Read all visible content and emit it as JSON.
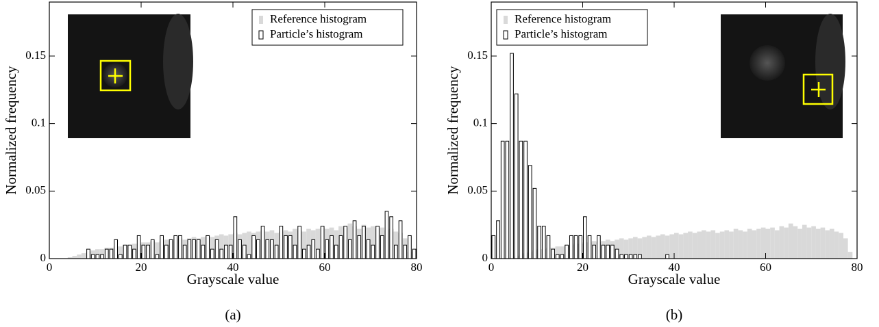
{
  "chart_data": [
    {
      "type": "histogram",
      "caption": "(a)",
      "x_label": "Grayscale value",
      "y_label": "Normalized frequency",
      "xlim": [
        0,
        80
      ],
      "xticks": [
        0,
        20,
        40,
        60,
        80
      ],
      "ylim": [
        0,
        0.19
      ],
      "yticks": [
        0,
        0.05,
        0.1,
        0.15
      ],
      "legend": "upper right",
      "bins": [
        0,
        1,
        2,
        3,
        4,
        5,
        6,
        7,
        8,
        9,
        10,
        11,
        12,
        13,
        14,
        15,
        16,
        17,
        18,
        19,
        20,
        21,
        22,
        23,
        24,
        25,
        26,
        27,
        28,
        29,
        30,
        31,
        32,
        33,
        34,
        35,
        36,
        37,
        38,
        39,
        40,
        41,
        42,
        43,
        44,
        45,
        46,
        47,
        48,
        49,
        50,
        51,
        52,
        53,
        54,
        55,
        56,
        57,
        58,
        59,
        60,
        61,
        62,
        63,
        64,
        65,
        66,
        67,
        68,
        69,
        70,
        71,
        72,
        73,
        74,
        75,
        76,
        77,
        78,
        79,
        80
      ],
      "series": [
        {
          "name": "Reference histogram",
          "color": "#d9d9d9",
          "values": [
            0,
            0,
            0,
            0,
            0.001,
            0.002,
            0.003,
            0.004,
            0.005,
            0.006,
            0.007,
            0.007,
            0.008,
            0.008,
            0.009,
            0.009,
            0.01,
            0.01,
            0.011,
            0.011,
            0.012,
            0.012,
            0.013,
            0.012,
            0.013,
            0.014,
            0.013,
            0.014,
            0.015,
            0.014,
            0.015,
            0.016,
            0.015,
            0.016,
            0.017,
            0.016,
            0.017,
            0.018,
            0.017,
            0.018,
            0.019,
            0.018,
            0.019,
            0.02,
            0.019,
            0.02,
            0.021,
            0.02,
            0.021,
            0.019,
            0.02,
            0.021,
            0.02,
            0.022,
            0.021,
            0.02,
            0.022,
            0.021,
            0.022,
            0.023,
            0.022,
            0.023,
            0.021,
            0.024,
            0.023,
            0.026,
            0.024,
            0.022,
            0.025,
            0.023,
            0.024,
            0.022,
            0.023,
            0.021,
            0.022,
            0.02,
            0.019,
            0.015,
            0.005,
            0
          ]
        },
        {
          "name": "Particle’s histogram",
          "color": "#ffffff",
          "values": [
            0,
            0,
            0,
            0,
            0,
            0,
            0,
            0,
            0.007,
            0.003,
            0.003,
            0.003,
            0.007,
            0.007,
            0.014,
            0.003,
            0.01,
            0.01,
            0.007,
            0.017,
            0.01,
            0.01,
            0.014,
            0.003,
            0.017,
            0.01,
            0.014,
            0.017,
            0.017,
            0.01,
            0.014,
            0.014,
            0.014,
            0.01,
            0.017,
            0.007,
            0.014,
            0.007,
            0.01,
            0.01,
            0.031,
            0.014,
            0.01,
            0.003,
            0.017,
            0.014,
            0.024,
            0.014,
            0.014,
            0.01,
            0.024,
            0.017,
            0.017,
            0.01,
            0.024,
            0.007,
            0.01,
            0.014,
            0.007,
            0.024,
            0.014,
            0.017,
            0.01,
            0.017,
            0.024,
            0.014,
            0.028,
            0.017,
            0.024,
            0.014,
            0.01,
            0.024,
            0.017,
            0.035,
            0.031,
            0.01,
            0.028,
            0.01,
            0.017,
            0.007
          ]
        }
      ]
    },
    {
      "type": "histogram",
      "caption": "(b)",
      "x_label": "Grayscale value",
      "y_label": "Normalized frequency",
      "xlim": [
        0,
        80
      ],
      "xticks": [
        0,
        20,
        40,
        60,
        80
      ],
      "ylim": [
        0,
        0.19
      ],
      "yticks": [
        0,
        0.05,
        0.1,
        0.15
      ],
      "legend": "upper left",
      "bins": [
        0,
        1,
        2,
        3,
        4,
        5,
        6,
        7,
        8,
        9,
        10,
        11,
        12,
        13,
        14,
        15,
        16,
        17,
        18,
        19,
        20,
        21,
        22,
        23,
        24,
        25,
        26,
        27,
        28,
        29,
        30,
        31,
        32,
        33,
        34,
        35,
        36,
        37,
        38,
        39,
        40,
        41,
        42,
        43,
        44,
        45,
        46,
        47,
        48,
        49,
        50,
        51,
        52,
        53,
        54,
        55,
        56,
        57,
        58,
        59,
        60,
        61,
        62,
        63,
        64,
        65,
        66,
        67,
        68,
        69,
        70,
        71,
        72,
        73,
        74,
        75,
        76,
        77,
        78,
        79,
        80
      ],
      "series": [
        {
          "name": "Reference histogram",
          "color": "#d9d9d9",
          "values": [
            0,
            0,
            0,
            0,
            0.001,
            0.002,
            0.003,
            0.004,
            0.005,
            0.006,
            0.007,
            0.007,
            0.008,
            0.008,
            0.009,
            0.009,
            0.01,
            0.01,
            0.011,
            0.011,
            0.012,
            0.012,
            0.013,
            0.012,
            0.013,
            0.014,
            0.013,
            0.014,
            0.015,
            0.014,
            0.015,
            0.016,
            0.015,
            0.016,
            0.017,
            0.016,
            0.017,
            0.018,
            0.017,
            0.018,
            0.019,
            0.018,
            0.019,
            0.02,
            0.019,
            0.02,
            0.021,
            0.02,
            0.021,
            0.019,
            0.02,
            0.021,
            0.02,
            0.022,
            0.021,
            0.02,
            0.022,
            0.021,
            0.022,
            0.023,
            0.022,
            0.023,
            0.021,
            0.024,
            0.023,
            0.026,
            0.024,
            0.022,
            0.025,
            0.023,
            0.024,
            0.022,
            0.023,
            0.021,
            0.022,
            0.02,
            0.019,
            0.015,
            0.005,
            0
          ]
        },
        {
          "name": "Particle’s histogram",
          "color": "#ffffff",
          "values": [
            0.017,
            0.028,
            0.087,
            0.087,
            0.152,
            0.122,
            0.087,
            0.087,
            0.069,
            0.052,
            0.024,
            0.024,
            0.017,
            0.007,
            0.003,
            0.003,
            0.01,
            0.017,
            0.017,
            0.017,
            0.031,
            0.017,
            0.01,
            0.017,
            0.01,
            0.01,
            0.01,
            0.007,
            0.003,
            0.003,
            0.003,
            0.003,
            0.003,
            0,
            0,
            0,
            0,
            0,
            0.003,
            0,
            0,
            0,
            0,
            0,
            0,
            0,
            0,
            0,
            0,
            0,
            0,
            0,
            0,
            0,
            0,
            0,
            0,
            0,
            0,
            0,
            0,
            0,
            0,
            0,
            0,
            0,
            0,
            0,
            0,
            0,
            0,
            0,
            0,
            0,
            0,
            0,
            0,
            0,
            0,
            0
          ]
        }
      ]
    }
  ]
}
